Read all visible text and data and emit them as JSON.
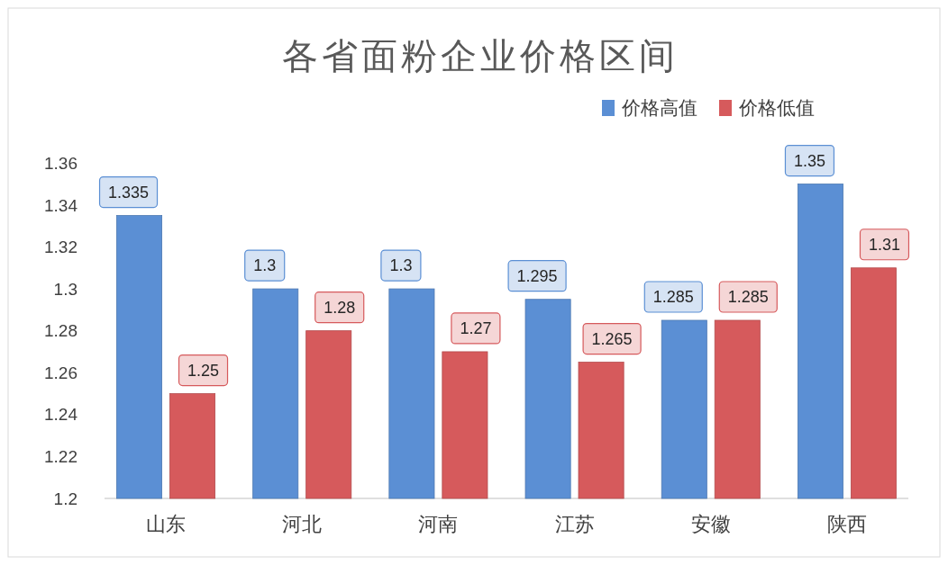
{
  "chart_data": {
    "type": "bar",
    "title": "各省面粉企业价格区间",
    "categories": [
      "山东",
      "河北",
      "河南",
      "江苏",
      "安徽",
      "陕西"
    ],
    "series": [
      {
        "name": "价格高值",
        "color": "#5b8fd4",
        "values": [
          1.335,
          1.3,
          1.3,
          1.295,
          1.285,
          1.35
        ]
      },
      {
        "name": "价格低值",
        "color": "#d65a5c",
        "values": [
          1.25,
          1.28,
          1.27,
          1.265,
          1.285,
          1.31
        ]
      }
    ],
    "ylim": [
      1.2,
      1.37
    ],
    "yticks": [
      1.2,
      1.22,
      1.24,
      1.26,
      1.28,
      1.3,
      1.32,
      1.34,
      1.36
    ],
    "grid": false,
    "legend": "top right",
    "data_labels": true
  }
}
